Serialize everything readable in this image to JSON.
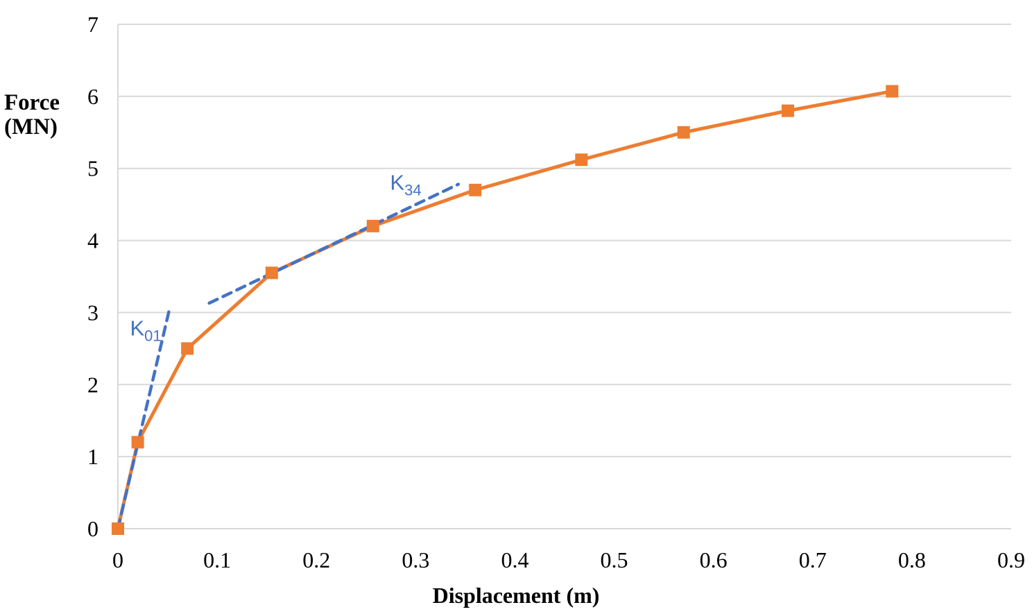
{
  "chart_data": {
    "type": "line",
    "title": "",
    "xlabel": "Displacement (m)",
    "ylabel": "Force (MN)",
    "ylabel_lines": [
      "Force",
      "(MN)"
    ],
    "xlim": [
      0,
      0.9
    ],
    "ylim": [
      0,
      7
    ],
    "x_ticks": [
      0,
      0.1,
      0.2,
      0.3,
      0.4,
      0.5,
      0.6,
      0.7,
      0.8,
      0.9
    ],
    "x_tick_labels": [
      "0",
      "0.1",
      "0.2",
      "0.3",
      "0.4",
      "0.5",
      "0.6",
      "0.7",
      "0.8",
      "0.9"
    ],
    "y_ticks": [
      0,
      1,
      2,
      3,
      4,
      5,
      6,
      7
    ],
    "y_tick_labels": [
      "0",
      "1",
      "2",
      "3",
      "4",
      "5",
      "6",
      "7"
    ],
    "grid": "horizontal",
    "legend": "none",
    "series": [
      {
        "name": "force-displacement-curve",
        "color": "#ED7D31",
        "style": "solid",
        "marker": "square",
        "points": [
          [
            0,
            0
          ],
          [
            0.02,
            1.2
          ],
          [
            0.07,
            2.5
          ],
          [
            0.155,
            3.55
          ],
          [
            0.257,
            4.2
          ],
          [
            0.36,
            4.7
          ],
          [
            0.467,
            5.12
          ],
          [
            0.57,
            5.5
          ],
          [
            0.675,
            5.8
          ],
          [
            0.78,
            6.07
          ]
        ]
      },
      {
        "name": "K01-secant-line",
        "color": "#4472C4",
        "style": "dashed",
        "marker": "none",
        "points": [
          [
            0,
            0
          ],
          [
            0.052,
            3.05
          ]
        ]
      },
      {
        "name": "K34-secant-line",
        "color": "#4472C4",
        "style": "dashed",
        "marker": "none",
        "points": [
          [
            0.092,
            3.13
          ],
          [
            0.343,
            4.78
          ]
        ]
      }
    ],
    "annotations": [
      {
        "id": "K01",
        "text_main": "K",
        "text_sub": "01",
        "x": 0.028,
        "y": 2.78,
        "color": "#4472C4"
      },
      {
        "id": "K34",
        "text_main": "K",
        "text_sub": "34",
        "x": 0.29,
        "y": 4.8,
        "color": "#4472C4"
      }
    ]
  },
  "colors": {
    "gridline": "#D9D9D9",
    "axis_line": "#D9D9D9",
    "tick_text": "#000000",
    "background": "#FFFFFF",
    "series_orange": "#ED7D31",
    "series_blue": "#4472C4"
  }
}
